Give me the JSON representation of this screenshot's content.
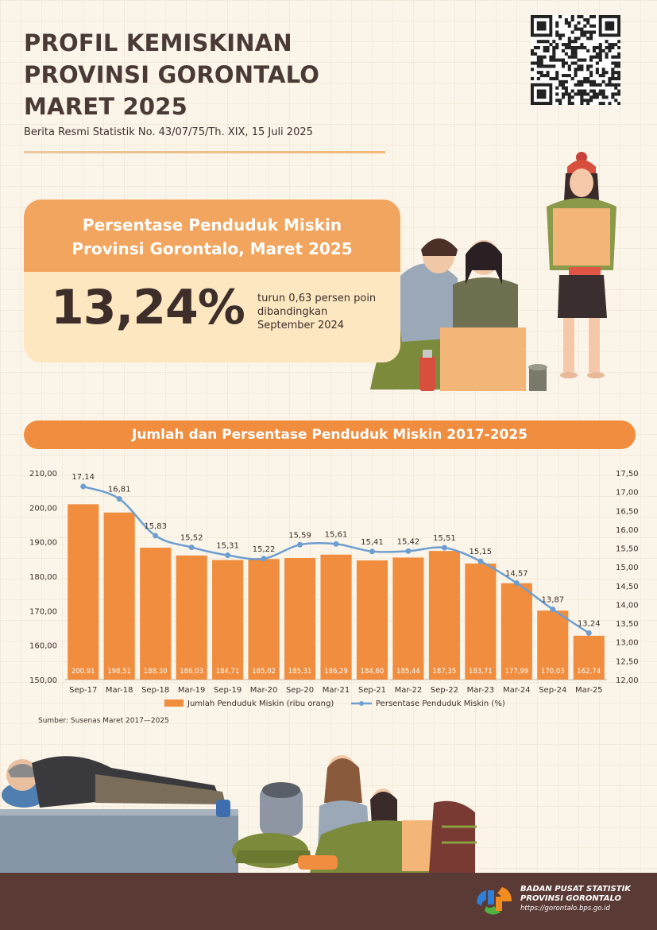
{
  "header": {
    "title_lines": [
      "PROFIL KEMISKINAN",
      "PROVINSI GORONTALO",
      "MARET 2025"
    ],
    "subtitle": "Berita Resmi Statistik No. 43/07/75/Th. XIX, 15 Juli 2025"
  },
  "highlight": {
    "title_lines": [
      "Persentase Penduduk Miskin",
      "Provinsi Gorontalo, Maret 2025"
    ],
    "value": "13,24%",
    "note_lines": [
      "turun 0,63 persen poin",
      "dibandingkan",
      "September 2024"
    ]
  },
  "chart_data": {
    "type": "bar",
    "title": "Jumlah dan Persentase Penduduk Miskin 2017-2025",
    "categories": [
      "Sep-17",
      "Mar-18",
      "Sep-18",
      "Mar-19",
      "Sep-19",
      "Mar-20",
      "Sep-20",
      "Mar-21",
      "Sep-21",
      "Mar-22",
      "Sep-22",
      "Mar-23",
      "Mar-24",
      "Sep-24",
      "Mar-25"
    ],
    "series": [
      {
        "name": "Jumlah Penduduk Miskin (ribu orang)",
        "type": "bar",
        "axis": "left",
        "color": "#f08d3f",
        "values": [
          200.91,
          198.51,
          188.3,
          186.03,
          184.71,
          185.02,
          185.31,
          186.29,
          184.6,
          185.44,
          187.35,
          183.71,
          177.99,
          170.03,
          162.74
        ],
        "labels": [
          "200,91",
          "198,51",
          "188,30",
          "186,03",
          "184,71",
          "185,02",
          "185,31",
          "186,29",
          "184,60",
          "185,44",
          "187,35",
          "183,71",
          "177,99",
          "170,03",
          "162,74"
        ]
      },
      {
        "name": "Persentase Penduduk Miskin (%)",
        "type": "line",
        "axis": "right",
        "color": "#6e9ed0",
        "values": [
          17.14,
          16.81,
          15.83,
          15.52,
          15.31,
          15.22,
          15.59,
          15.61,
          15.41,
          15.42,
          15.51,
          15.15,
          14.57,
          13.87,
          13.24
        ],
        "labels": [
          "17,14",
          "16,81",
          "15,83",
          "15,52",
          "15,31",
          "15,22",
          "15,59",
          "15,61",
          "15,41",
          "15,42",
          "15,51",
          "15,15",
          "14,57",
          "13,87",
          "13,24"
        ]
      }
    ],
    "left_axis": {
      "ylim": [
        150,
        210
      ],
      "ticks": [
        210,
        200,
        190,
        180,
        170,
        160,
        150
      ],
      "tick_labels": [
        "210,00",
        "200,00",
        "190,00",
        "180,00",
        "170,00",
        "160,00",
        "150,00"
      ]
    },
    "right_axis": {
      "ylim": [
        12.0,
        17.5
      ],
      "ticks": [
        17.5,
        17.0,
        16.5,
        16.0,
        15.5,
        15.0,
        14.5,
        14.0,
        13.5,
        13.0,
        12.5,
        12.0
      ],
      "tick_labels": [
        "17,50",
        "17,00",
        "16,50",
        "16,00",
        "15,50",
        "15,00",
        "14,50",
        "14,00",
        "13,50",
        "13,00",
        "12,50",
        "12,00"
      ]
    },
    "legend_position": "bottom",
    "grid": false
  },
  "source": "Sumber: Susenas Maret 2017—2025",
  "footer": {
    "org_lines": [
      "BADAN PUSAT STATISTIK",
      "PROVINSI GORONTALO"
    ],
    "url": "https://gorontalo.bps.go.id"
  },
  "colors": {
    "bar": "#f08d3f",
    "line": "#6e9ed0",
    "card_head": "#f2a55e",
    "card_body": "#fde7c1",
    "footer": "#5a3a35",
    "text": "#3d2e2a"
  },
  "icons": [
    "qr-code-icon",
    "bps-logo-icon"
  ]
}
